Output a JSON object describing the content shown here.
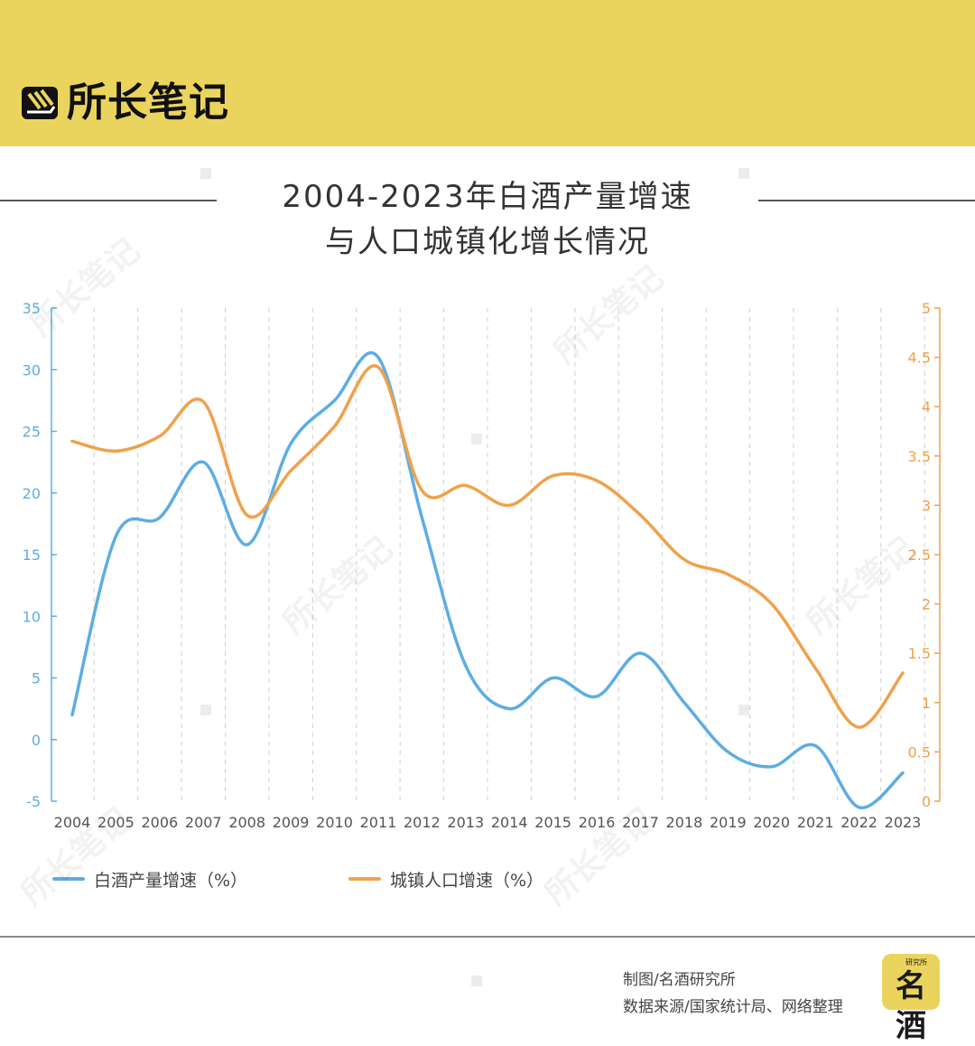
{
  "header": {
    "brand": "所长笔记"
  },
  "title_line1": "2004-2023年白酒产量增速",
  "title_line2": "与人口城镇化增长情况",
  "chart_data": {
    "type": "line",
    "x": [
      "2004",
      "2005",
      "2006",
      "2007",
      "2008",
      "2009",
      "2010",
      "2011",
      "2012",
      "2013",
      "2014",
      "2015",
      "2016",
      "2017",
      "2018",
      "2019",
      "2020",
      "2021",
      "2022",
      "2023"
    ],
    "series": [
      {
        "name": "白酒产量增速（%）",
        "axis": "left",
        "color": "#5dade2",
        "values": [
          2,
          16.5,
          18,
          22.5,
          15.8,
          24,
          27.5,
          31,
          18,
          6,
          2.5,
          5,
          3.5,
          7,
          3,
          -1,
          -2.2,
          -0.5,
          -5.5,
          -2.7
        ]
      },
      {
        "name": "城镇人口增速（%）",
        "axis": "right",
        "color": "#f0a14b",
        "values": [
          3.65,
          3.55,
          3.7,
          4.05,
          2.9,
          3.35,
          3.8,
          4.4,
          3.15,
          3.2,
          3.0,
          3.3,
          3.25,
          2.9,
          2.45,
          2.3,
          2.0,
          1.35,
          0.75,
          1.3
        ]
      }
    ],
    "y_left": {
      "min": -5,
      "max": 35,
      "ticks": [
        "-5",
        "0",
        "5",
        "10",
        "15",
        "20",
        "25",
        "30",
        "35"
      ],
      "color": "#5dade2"
    },
    "y_right": {
      "min": 0,
      "max": 5,
      "ticks": [
        "0",
        "0.5",
        "1",
        "1.5",
        "2",
        "2.5",
        "3",
        "3.5",
        "4",
        "4.5",
        "5"
      ],
      "color": "#f0a14b"
    },
    "grid": "vertical dashed",
    "legend_position": "bottom"
  },
  "legend": {
    "item1": {
      "label": "白酒产量增速（%）",
      "color": "#5dade2"
    },
    "item2": {
      "label": "城镇人口增速（%）",
      "color": "#f0a14b"
    }
  },
  "footer": {
    "credit_line1": "制图/名酒研究所",
    "credit_line2": "数据来源/国家统计局、网络整理",
    "badge_small": "研究所",
    "badge_main": "名酒"
  },
  "watermark": "所长笔记",
  "colors": {
    "banner": "#ebd45e",
    "series_left": "#5dade2",
    "series_right": "#f0a14b"
  }
}
